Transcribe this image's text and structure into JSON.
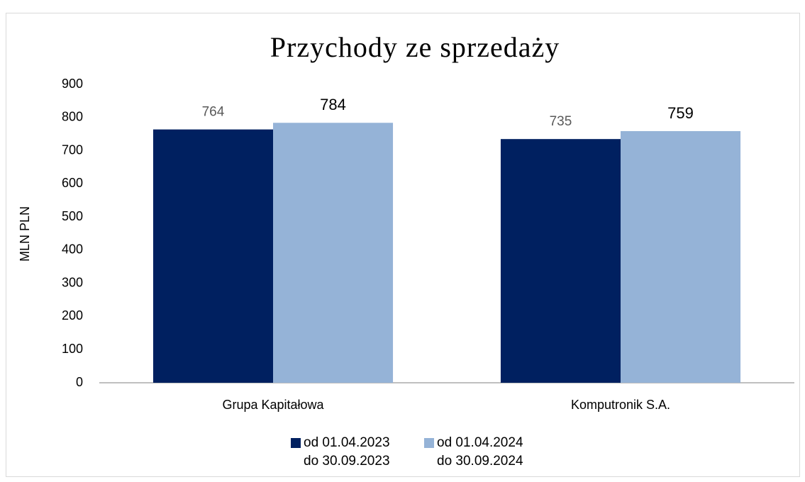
{
  "chart_data": {
    "type": "bar",
    "title": "Przychody ze sprzedaży",
    "y_label": "MLN PLN",
    "categories": [
      "Grupa Kapitałowa",
      "Komputronik S.A."
    ],
    "series": [
      {
        "name": "od 01.04.2023\ndo 30.09.2023",
        "color": "#002060",
        "values": [
          764,
          735
        ]
      },
      {
        "name": "od 01.04.2024\ndo 30.09.2024",
        "color": "#95b3d7",
        "values": [
          784,
          759
        ]
      }
    ],
    "ylim": [
      0,
      900
    ],
    "yticks": [
      0,
      100,
      200,
      300,
      400,
      500,
      600,
      700,
      800,
      900
    ],
    "grid": false,
    "legend": "bottom"
  }
}
